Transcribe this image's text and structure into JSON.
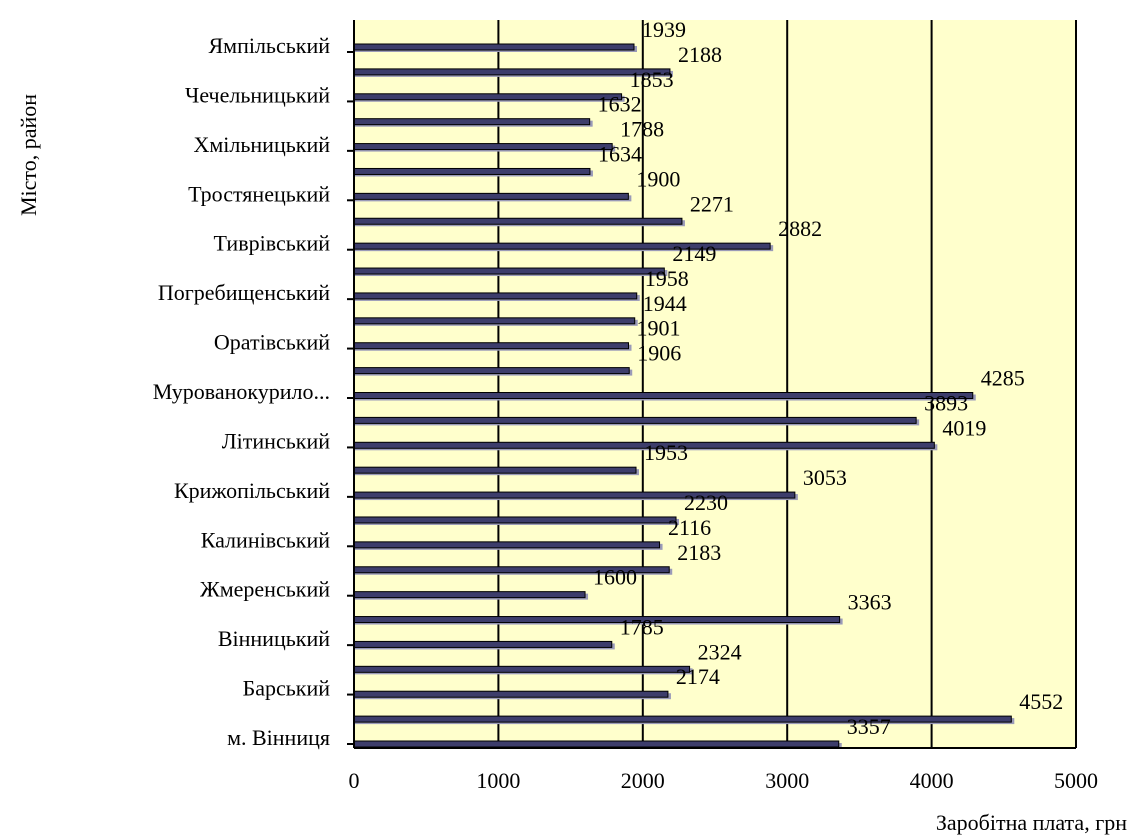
{
  "chart_data": {
    "type": "bar",
    "orientation": "horizontal",
    "xlabel": "Заробітна плата, грн",
    "ylabel": "Місто, район",
    "xlim": [
      0,
      5000
    ],
    "xticks": [
      "0",
      "1000",
      "2000",
      "3000",
      "4000",
      "5000"
    ],
    "grid": "vertical",
    "legend": "none",
    "colors": {
      "plot_background": "#ffffcc",
      "bar_fill": "#3d3d6b",
      "bar_edge": "#000000",
      "gridline": "#000000"
    },
    "categories": [
      "м. Вінниця",
      "Барський",
      "Вінницький",
      "Жмеренський",
      "Калинівський",
      "Крижопільський",
      "Літинський",
      "Мурованокурило...",
      "Оратівський",
      "Погребищенський",
      "Тиврівський",
      "Тростянецький",
      "Хмільницький",
      "Чечельницький",
      "Ямпільський"
    ],
    "bars": [
      {
        "value": 3357,
        "label": "3357"
      },
      {
        "value": 4552,
        "label": "4552"
      },
      {
        "value": 2174,
        "label": "2174"
      },
      {
        "value": 2324,
        "label": "2324"
      },
      {
        "value": 1785,
        "label": "1785"
      },
      {
        "value": 3363,
        "label": "3363"
      },
      {
        "value": 1600,
        "label": "1600"
      },
      {
        "value": 2183,
        "label": "2183"
      },
      {
        "value": 2116,
        "label": "2116"
      },
      {
        "value": 2230,
        "label": "2230"
      },
      {
        "value": 3053,
        "label": "3053"
      },
      {
        "value": 1953,
        "label": "1953"
      },
      {
        "value": 4019,
        "label": "4019"
      },
      {
        "value": 3893,
        "label": "3893"
      },
      {
        "value": 4285,
        "label": "4285"
      },
      {
        "value": 1906,
        "label": "1906"
      },
      {
        "value": 1901,
        "label": "1901"
      },
      {
        "value": 1944,
        "label": "1944"
      },
      {
        "value": 1958,
        "label": "1958"
      },
      {
        "value": 2149,
        "label": "2149"
      },
      {
        "value": 2882,
        "label": "2882"
      },
      {
        "value": 2271,
        "label": "2271"
      },
      {
        "value": 1900,
        "label": "1900"
      },
      {
        "value": 1634,
        "label": "1634"
      },
      {
        "value": 1788,
        "label": "1788"
      },
      {
        "value": 1632,
        "label": "1632"
      },
      {
        "value": 1853,
        "label": "1853"
      },
      {
        "value": 2188,
        "label": "2188"
      },
      {
        "value": 1939,
        "label": "1939"
      }
    ]
  }
}
